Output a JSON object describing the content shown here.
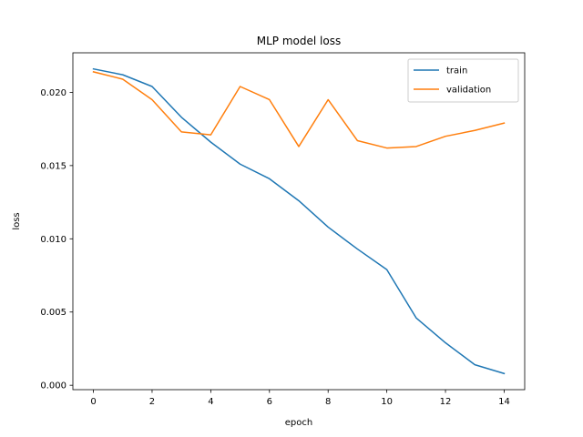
{
  "chart_data": {
    "type": "line",
    "title": "MLP model loss",
    "xlabel": "epoch",
    "ylabel": "loss",
    "xlim": [
      -0.7,
      14.7
    ],
    "ylim": [
      -0.0003,
      0.0227
    ],
    "x_ticks": [
      0,
      2,
      4,
      6,
      8,
      10,
      12,
      14
    ],
    "x_tick_labels": [
      "0",
      "2",
      "4",
      "6",
      "8",
      "10",
      "12",
      "14"
    ],
    "y_ticks": [
      0.0,
      0.005,
      0.01,
      0.015,
      0.02
    ],
    "y_tick_labels": [
      "0.000",
      "0.005",
      "0.010",
      "0.015",
      "0.020"
    ],
    "grid": false,
    "legend_position": "upper right",
    "x": [
      0,
      1,
      2,
      3,
      4,
      5,
      6,
      7,
      8,
      9,
      10,
      11,
      12,
      13,
      14
    ],
    "series": [
      {
        "name": "train",
        "color": "#1f77b4",
        "values": [
          0.0216,
          0.0212,
          0.0204,
          0.0183,
          0.0166,
          0.0151,
          0.0141,
          0.0126,
          0.0108,
          0.0093,
          0.0079,
          0.0046,
          0.0029,
          0.0014,
          0.0008
        ]
      },
      {
        "name": "validation",
        "color": "#ff7f0e",
        "values": [
          0.0214,
          0.0209,
          0.0195,
          0.0173,
          0.0171,
          0.0204,
          0.0195,
          0.0163,
          0.0195,
          0.0167,
          0.0162,
          0.0163,
          0.017,
          0.0174,
          0.0179
        ]
      }
    ]
  }
}
